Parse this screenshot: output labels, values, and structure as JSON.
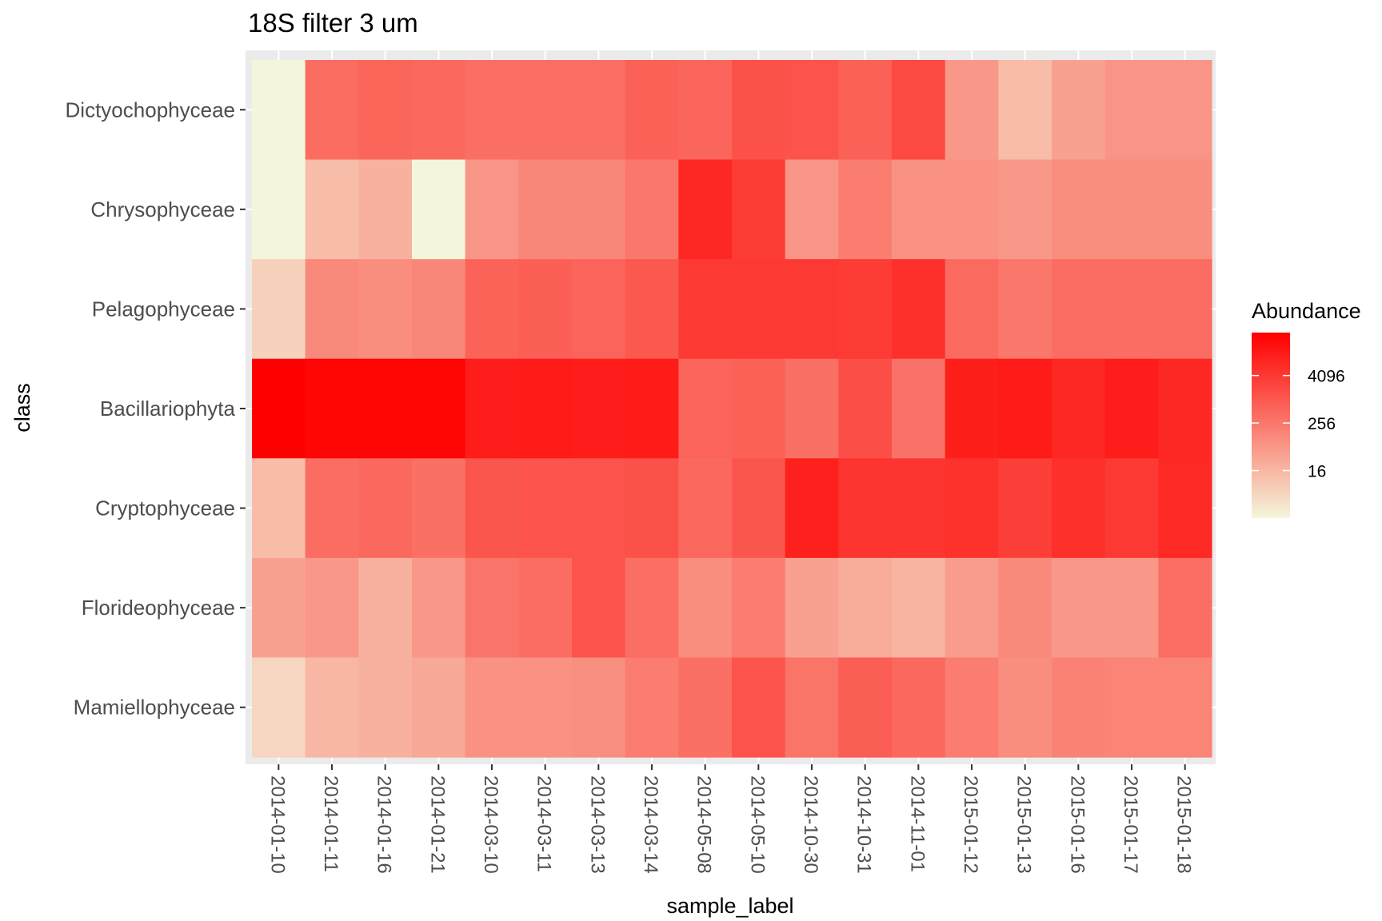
{
  "chart_data": {
    "type": "heatmap",
    "title": "18S filter 3 um",
    "xlabel": "sample_label",
    "ylabel": "class",
    "x": [
      "2014-01-10",
      "2014-01-11",
      "2014-01-16",
      "2014-01-21",
      "2014-03-10",
      "2014-03-11",
      "2014-03-13",
      "2014-03-14",
      "2014-05-08",
      "2014-05-10",
      "2014-10-30",
      "2014-10-31",
      "2014-11-01",
      "2015-01-12",
      "2015-01-13",
      "2015-01-16",
      "2015-01-17",
      "2015-01-18"
    ],
    "y": [
      "Dictyochophyceae",
      "Chrysophyceae",
      "Pelagophyceae",
      "Bacillariophyta",
      "Cryptophyceae",
      "Florideophyceae",
      "Mamiellophyceae"
    ],
    "scale": "log2",
    "values": [
      [
        1,
        420,
        560,
        480,
        380,
        380,
        380,
        700,
        550,
        1400,
        1200,
        700,
        2000,
        60,
        12,
        40,
        70,
        70
      ],
      [
        1,
        12,
        20,
        1,
        70,
        130,
        130,
        260,
        9000,
        3500,
        70,
        200,
        80,
        80,
        60,
        100,
        100,
        100
      ],
      [
        5,
        120,
        100,
        130,
        620,
        750,
        600,
        1000,
        4000,
        4000,
        4000,
        3500,
        6000,
        460,
        260,
        400,
        400,
        400
      ],
      [
        50000,
        40000,
        40000,
        40000,
        14000,
        15000,
        14000,
        15000,
        600,
        700,
        350,
        1500,
        320,
        13000,
        15000,
        9000,
        14000,
        9000
      ],
      [
        12,
        400,
        500,
        360,
        1100,
        1200,
        1200,
        1400,
        500,
        1100,
        12000,
        5000,
        5000,
        5500,
        3000,
        6000,
        4000,
        8000
      ],
      [
        40,
        60,
        20,
        60,
        280,
        400,
        1200,
        380,
        100,
        200,
        40,
        24,
        18,
        50,
        120,
        60,
        60,
        380
      ],
      [
        4,
        16,
        20,
        30,
        80,
        80,
        90,
        200,
        360,
        1200,
        300,
        800,
        500,
        200,
        100,
        160,
        150,
        150
      ]
    ],
    "legend": {
      "title": "Abundance",
      "breaks": [
        "4096",
        "256",
        "16"
      ],
      "break_values": [
        4096,
        256,
        16
      ],
      "range": [
        1,
        50000
      ],
      "low_color": "#f5f5dc",
      "high_color": "#ff0000",
      "position": "right"
    },
    "panel_background": "#ebebeb",
    "grid": true
  }
}
